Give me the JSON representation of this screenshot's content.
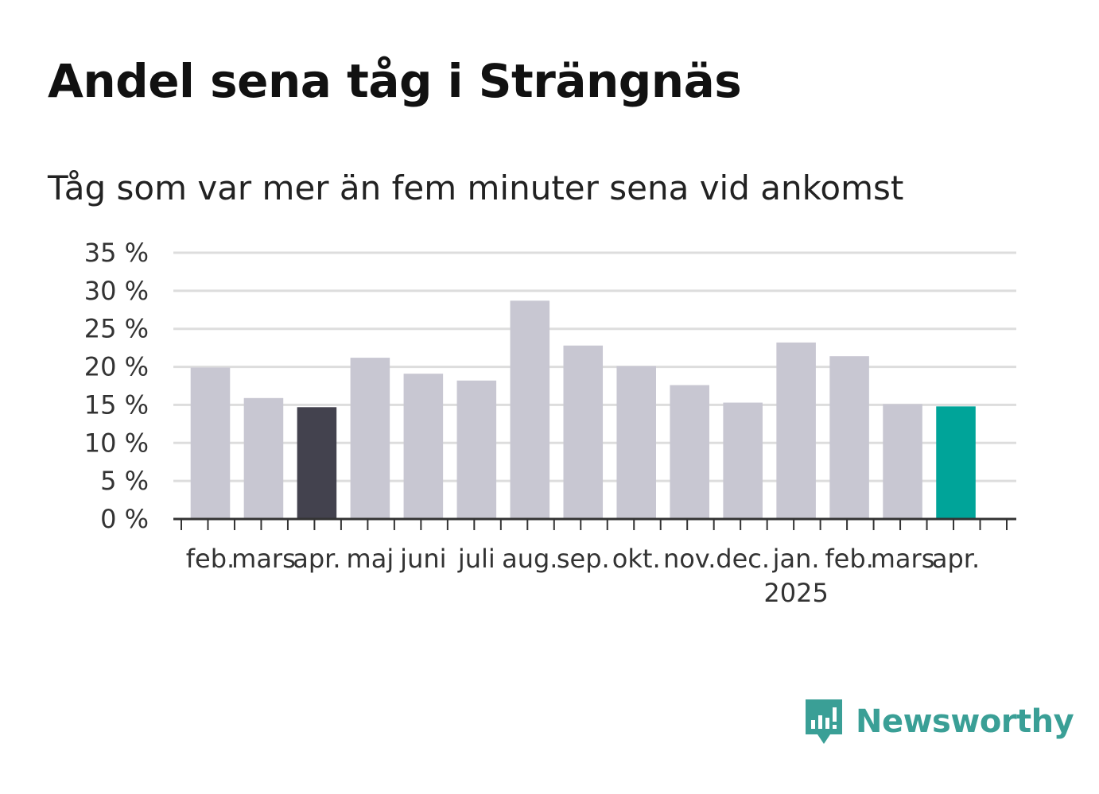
{
  "title": "Andel sena tåg i Strängnäs",
  "subtitle": "Tåg som var mer än fem minuter sena vid ankomst",
  "brand": {
    "name": "Newsworthy",
    "color": "#3a9f96",
    "icon": "newsworthy-logo-icon"
  },
  "colors": {
    "default_bar": "#c8c7d2",
    "highlight_previous": "#43424e",
    "highlight_current": "#00a499",
    "grid": "#dddddd",
    "axis": "#333333"
  },
  "chart_data": {
    "type": "bar",
    "title": "Andel sena tåg i Strängnäs",
    "subtitle": "Tåg som var mer än fem minuter sena vid ankomst",
    "categories": [
      "feb.",
      "mars",
      "apr.",
      "maj",
      "juni",
      "juli",
      "aug.",
      "sep.",
      "okt.",
      "nov.",
      "dec.",
      "jan.",
      "feb.",
      "mars",
      "apr."
    ],
    "year_labels": [
      "",
      "",
      "",
      "",
      "",
      "",
      "",
      "",
      "",
      "",
      "",
      "2025",
      "",
      "",
      ""
    ],
    "values": [
      19.9,
      15.9,
      14.7,
      21.2,
      19.1,
      18.2,
      28.7,
      22.8,
      20.1,
      17.6,
      15.3,
      23.2,
      21.4,
      15.1,
      14.8
    ],
    "highlight": [
      null,
      null,
      "previous",
      null,
      null,
      null,
      null,
      null,
      null,
      null,
      null,
      null,
      null,
      null,
      "current"
    ],
    "yticks": [
      "0 %",
      "5 %",
      "10 %",
      "15 %",
      "20 %",
      "25 %",
      "30 %",
      "35 %"
    ],
    "ytick_values": [
      0,
      5,
      10,
      15,
      20,
      25,
      30,
      35
    ],
    "ylim": [
      0,
      35
    ],
    "grid": true,
    "xlabel": "",
    "ylabel": ""
  }
}
